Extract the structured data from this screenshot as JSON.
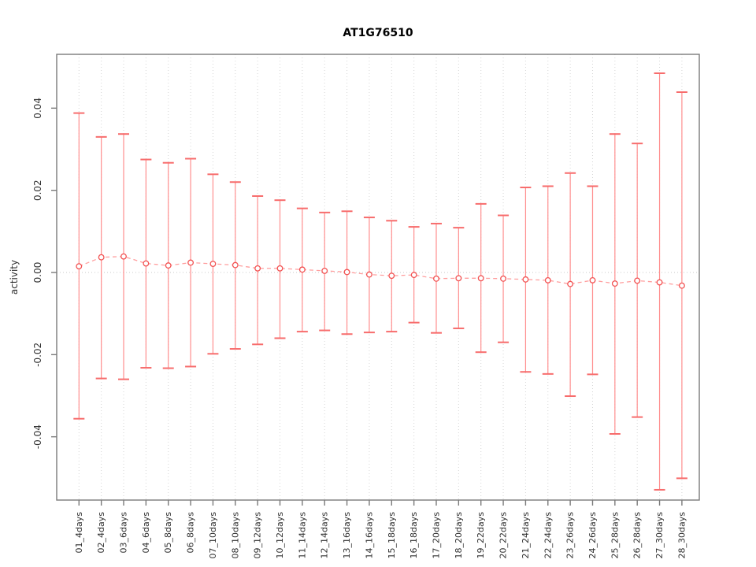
{
  "figure": {
    "title": "AT1G76510",
    "ylabel": "activity"
  },
  "chart_data": {
    "type": "line",
    "subtype": "errorbar-line",
    "title": "AT1G76510",
    "xlabel": "",
    "ylabel": "activity",
    "legend": "none",
    "grid": "vertical dotted gridline per category plus dotted horizontal zero line",
    "marker": "open-circle",
    "line_style": "dashed",
    "ylim": [
      -0.0554,
      0.0531
    ],
    "yticks": [
      -0.04,
      -0.02,
      0,
      0.02,
      0.04
    ],
    "ytick_labels": [
      "-0.04",
      "-0.02",
      "0.00",
      "0.02",
      "0.04"
    ],
    "categories": [
      "01_4days",
      "02_4days",
      "03_6days",
      "04_6days",
      "05_8days",
      "06_8days",
      "07_10days",
      "08_10days",
      "09_12days",
      "10_12days",
      "11_14days",
      "12_14days",
      "13_16days",
      "14_16days",
      "15_18days",
      "16_18days",
      "17_20days",
      "18_20days",
      "19_22days",
      "20_22days",
      "21_24days",
      "22_24days",
      "23_26days",
      "24_26days",
      "25_28days",
      "26_28days",
      "27_30days",
      "28_30days"
    ],
    "series": [
      {
        "name": "activity",
        "values": [
          0.0015,
          0.0037,
          0.0039,
          0.0022,
          0.0017,
          0.0024,
          0.0021,
          0.0018,
          0.001,
          0.001,
          0.0007,
          0.0004,
          0.0001,
          -0.0005,
          -0.0008,
          -0.0006,
          -0.0015,
          -0.0014,
          -0.0014,
          -0.0015,
          -0.0017,
          -0.0019,
          -0.0028,
          -0.0019,
          -0.0027,
          -0.002,
          -0.0024,
          -0.0032
        ],
        "upper": [
          0.0388,
          0.033,
          0.0337,
          0.0275,
          0.0267,
          0.0277,
          0.0239,
          0.022,
          0.0186,
          0.0176,
          0.0156,
          0.0146,
          0.0149,
          0.0134,
          0.0126,
          0.0111,
          0.0119,
          0.0109,
          0.0167,
          0.0139,
          0.0207,
          0.021,
          0.0242,
          0.021,
          0.0337,
          0.0314,
          0.0485,
          0.0439
        ],
        "lower": [
          -0.0356,
          -0.0258,
          -0.026,
          -0.0232,
          -0.0233,
          -0.0229,
          -0.0198,
          -0.0186,
          -0.0175,
          -0.016,
          -0.0144,
          -0.0141,
          -0.015,
          -0.0146,
          -0.0144,
          -0.0122,
          -0.0147,
          -0.0136,
          -0.0194,
          -0.017,
          -0.0242,
          -0.0247,
          -0.0301,
          -0.0248,
          -0.0393,
          -0.0352,
          -0.0529,
          -0.0501
        ]
      }
    ],
    "colors": {
      "marker": "#f25252",
      "error_bar_cap": "#f76c6c",
      "error_bar_stem": "#ff8f8f",
      "dash_line": "#ff9e9e",
      "grid": "#d6d6d6",
      "zero_line": "#c9c9c9",
      "axis": "#7a7a7a",
      "tick_text": "#303030",
      "background": "#ffffff"
    }
  }
}
